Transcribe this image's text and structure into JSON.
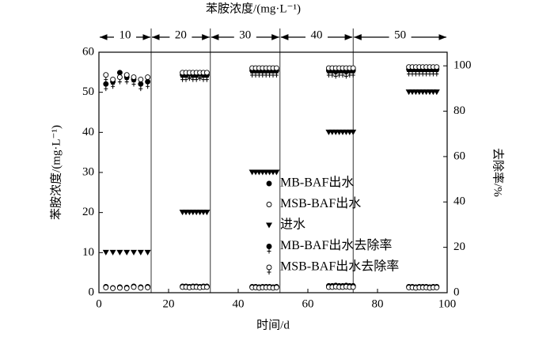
{
  "chart_data": {
    "type": "scatter",
    "title": "苯胺浓度/(mg·L⁻¹)",
    "x_label": "时间/d",
    "y_label": "苯胺浓度/(mg·L⁻¹)",
    "y2_label": "去除率/%",
    "phase_labels": [
      10,
      20,
      30,
      40,
      50
    ],
    "phase_boundaries": [
      15,
      32,
      52,
      73
    ],
    "xlim": [
      0,
      100
    ],
    "xticks": [
      0,
      20,
      40,
      60,
      80,
      100
    ],
    "ylim": [
      0,
      60
    ],
    "yticks": [
      0,
      10,
      20,
      30,
      40,
      50,
      60
    ],
    "y2lim": [
      0,
      106
    ],
    "y2ticks": [
      0,
      20,
      40,
      60,
      80,
      100
    ],
    "legend": "lower right",
    "x": [
      2,
      4,
      6,
      8,
      10,
      12,
      14,
      24,
      25,
      26,
      27,
      28,
      29,
      30,
      31,
      44,
      45,
      46,
      47,
      48,
      49,
      50,
      51,
      66,
      67,
      68,
      69,
      70,
      71,
      72,
      73,
      89,
      90,
      91,
      92,
      93,
      94,
      95,
      96,
      97
    ],
    "series": [
      {
        "name": "MB-BAF出水",
        "color": "#000000",
        "marker": "filled-circle",
        "values": [
          1.5,
          1.2,
          1.4,
          1.3,
          1.6,
          1.4,
          1.5,
          1.6,
          1.6,
          1.5,
          1.6,
          1.6,
          1.5,
          1.6,
          1.6,
          1.5,
          1.5,
          1.4,
          1.5,
          1.5,
          1.5,
          1.4,
          1.5,
          1.7,
          1.7,
          1.8,
          1.7,
          1.7,
          1.8,
          1.7,
          1.7,
          1.5,
          1.5,
          1.4,
          1.5,
          1.5,
          1.5,
          1.4,
          1.5,
          1.5
        ]
      },
      {
        "name": "MSB-BAF出水",
        "color": "#000000",
        "marker": "open-circle",
        "values": [
          1.3,
          1.1,
          1.2,
          1.1,
          1.4,
          1.2,
          1.3,
          1.4,
          1.4,
          1.3,
          1.4,
          1.4,
          1.3,
          1.4,
          1.4,
          1.3,
          1.3,
          1.2,
          1.3,
          1.3,
          1.3,
          1.2,
          1.3,
          1.4,
          1.4,
          1.5,
          1.4,
          1.4,
          1.5,
          1.4,
          1.4,
          1.3,
          1.3,
          1.2,
          1.3,
          1.3,
          1.3,
          1.2,
          1.3,
          1.3
        ]
      },
      {
        "name": "进水",
        "color": "#000000",
        "marker": "triangle-down",
        "values": [
          10,
          10,
          10,
          10,
          10,
          10,
          10,
          20,
          20,
          20,
          20,
          20,
          20,
          20,
          20,
          30,
          30,
          30,
          30,
          30,
          30,
          30,
          30,
          40,
          40,
          40,
          40,
          40,
          40,
          40,
          40,
          50,
          50,
          50,
          50,
          50,
          50,
          50,
          50,
          50
        ]
      },
      {
        "name": "MB-BAF出水去除率",
        "color": "#000000",
        "marker": "filled-circle-bar",
        "axis": "y2",
        "values": [
          92,
          93,
          97,
          95,
          94,
          92,
          93,
          96,
          96,
          96.5,
          96,
          96,
          96.5,
          96,
          96,
          98,
          98,
          98,
          98,
          98,
          98,
          98,
          98,
          98,
          98,
          97.5,
          98,
          98,
          97.5,
          98,
          98,
          98.5,
          98.5,
          98.5,
          98.5,
          98.5,
          98.5,
          98.5,
          98.5,
          98.5
        ]
      },
      {
        "name": "MSB-BAF出水去除率",
        "color": "#000000",
        "marker": "open-circle-bar",
        "axis": "y2",
        "values": [
          96,
          94,
          95,
          96,
          95,
          94,
          95,
          97,
          97,
          97,
          97,
          97,
          97,
          97,
          97,
          99,
          99,
          99,
          99,
          99,
          99,
          99,
          99,
          99,
          99,
          99,
          99,
          99,
          99,
          99,
          99,
          99.5,
          99.5,
          99.5,
          99.5,
          99.5,
          99.5,
          99.5,
          99.5,
          99.5
        ]
      }
    ]
  }
}
